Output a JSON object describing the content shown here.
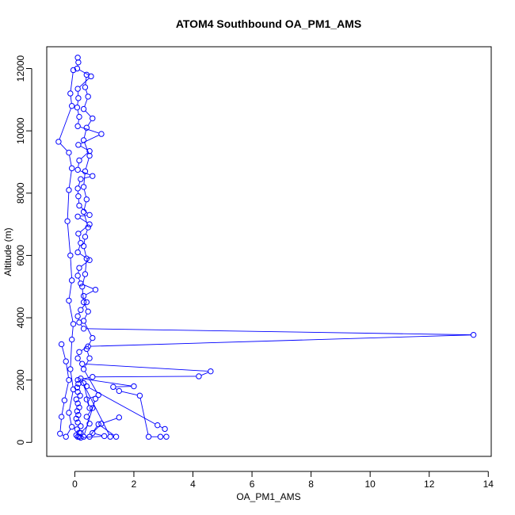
{
  "chart_data": {
    "type": "line",
    "title": "ATOM4 Southbound OA_PM1_AMS",
    "xlabel": "OA_PM1_AMS",
    "ylabel": "Altitude (m)",
    "xlim": [
      -0.95,
      14.1
    ],
    "ylim": [
      -450,
      12700
    ],
    "xticks": [
      0,
      2,
      4,
      6,
      8,
      10,
      12,
      14
    ],
    "yticks": [
      0,
      2000,
      4000,
      6000,
      8000,
      10000,
      12000
    ],
    "grid": false,
    "markers": "open-circle",
    "color": "#0000ff",
    "series": [
      {
        "values": [
          [
            0.1,
            180
          ],
          [
            0.05,
            230
          ],
          [
            0.15,
            310
          ],
          [
            0.08,
            420
          ],
          [
            0.2,
            520
          ],
          [
            0.1,
            640
          ],
          [
            0.05,
            760
          ],
          [
            0.12,
            880
          ],
          [
            0.08,
            1000
          ],
          [
            0.15,
            1120
          ],
          [
            0.1,
            1250
          ],
          [
            0.05,
            1380
          ],
          [
            0.18,
            1500
          ],
          [
            0.1,
            1620
          ],
          [
            0.08,
            1760
          ],
          [
            0.12,
            1880
          ],
          [
            0.1,
            2000
          ],
          [
            0.6,
            2100
          ],
          [
            4.2,
            2120
          ],
          [
            4.6,
            2280
          ],
          [
            0.25,
            2520
          ],
          [
            0.1,
            2700
          ],
          [
            0.15,
            2900
          ],
          [
            0.45,
            3080
          ],
          [
            13.5,
            3450
          ],
          [
            0.3,
            3650
          ],
          [
            0.15,
            3850
          ],
          [
            0.1,
            4050
          ],
          [
            0.2,
            4250
          ],
          [
            0.4,
            4500
          ],
          [
            0.3,
            4700
          ],
          [
            0.7,
            4900
          ],
          [
            0.2,
            5100
          ],
          [
            0.1,
            5350
          ],
          [
            0.15,
            5600
          ],
          [
            0.5,
            5850
          ],
          [
            0.1,
            6100
          ],
          [
            0.2,
            6400
          ],
          [
            0.12,
            6700
          ],
          [
            0.5,
            7000
          ],
          [
            0.1,
            7250
          ],
          [
            0.5,
            7300
          ],
          [
            0.15,
            7600
          ],
          [
            0.12,
            7900
          ],
          [
            0.1,
            8150
          ],
          [
            0.2,
            8450
          ],
          [
            0.6,
            8550
          ],
          [
            0.1,
            8750
          ],
          [
            0.15,
            9050
          ],
          [
            0.5,
            9350
          ],
          [
            0.12,
            9550
          ],
          [
            0.9,
            9900
          ],
          [
            0.1,
            10150
          ],
          [
            0.15,
            10450
          ],
          [
            0.08,
            10750
          ],
          [
            0.12,
            11050
          ],
          [
            0.1,
            11350
          ],
          [
            0.55,
            11750
          ],
          [
            0.08,
            12000
          ],
          [
            0.12,
            12200
          ],
          [
            0.1,
            12350
          ]
        ]
      },
      {
        "values": [
          [
            3.1,
            180
          ],
          [
            2.9,
            180
          ],
          [
            2.5,
            180
          ],
          [
            2.2,
            1500
          ],
          [
            1.5,
            1650
          ],
          [
            1.3,
            1780
          ],
          [
            2.0,
            1800
          ],
          [
            0.2,
            2050
          ],
          [
            1.2,
            180
          ],
          [
            1.4,
            180
          ],
          [
            0.8,
            580
          ],
          [
            0.5,
            180
          ],
          [
            0.3,
            180
          ],
          [
            0.7,
            1400
          ],
          [
            0.6,
            1100
          ],
          [
            0.4,
            820
          ],
          [
            0.5,
            600
          ],
          [
            0.2,
            300
          ],
          [
            0.15,
            180
          ]
        ]
      },
      {
        "values": [
          [
            -0.45,
            3150
          ],
          [
            -0.3,
            2600
          ],
          [
            -0.2,
            2000
          ],
          [
            -0.35,
            1350
          ],
          [
            -0.45,
            820
          ],
          [
            -0.5,
            280
          ],
          [
            -0.3,
            180
          ],
          [
            -0.1,
            500
          ],
          [
            -0.2,
            950
          ],
          [
            -0.05,
            1700
          ],
          [
            -0.15,
            2350
          ],
          [
            -0.1,
            3300
          ],
          [
            -0.05,
            3800
          ],
          [
            -0.2,
            4550
          ],
          [
            -0.1,
            5200
          ],
          [
            -0.15,
            6000
          ],
          [
            -0.25,
            7100
          ],
          [
            -0.2,
            8100
          ],
          [
            -0.1,
            8800
          ],
          [
            -0.2,
            9300
          ],
          [
            -0.55,
            9650
          ],
          [
            -0.1,
            10800
          ],
          [
            -0.15,
            11200
          ],
          [
            -0.05,
            11950
          ]
        ]
      },
      {
        "values": [
          [
            0.3,
            1900
          ],
          [
            0.5,
            1100
          ],
          [
            0.4,
            1380
          ],
          [
            0.8,
            1520
          ],
          [
            0.3,
            2350
          ],
          [
            0.5,
            2700
          ],
          [
            0.4,
            3000
          ],
          [
            0.6,
            3350
          ],
          [
            0.3,
            3900
          ],
          [
            0.45,
            4200
          ],
          [
            0.3,
            4500
          ],
          [
            0.25,
            5000
          ],
          [
            0.35,
            5400
          ],
          [
            0.4,
            5900
          ],
          [
            0.3,
            6300
          ],
          [
            0.35,
            6600
          ],
          [
            0.45,
            6900
          ],
          [
            0.3,
            7400
          ],
          [
            0.4,
            7800
          ],
          [
            0.3,
            8200
          ],
          [
            0.35,
            8700
          ],
          [
            0.5,
            9200
          ],
          [
            0.3,
            9700
          ],
          [
            0.4,
            10100
          ],
          [
            0.6,
            10400
          ],
          [
            0.3,
            10700
          ],
          [
            0.45,
            11100
          ],
          [
            0.35,
            11400
          ],
          [
            0.4,
            11800
          ]
        ]
      },
      {
        "values": [
          [
            0.4,
            1800
          ],
          [
            2.8,
            550
          ],
          [
            3.05,
            430
          ]
        ]
      },
      {
        "values": [
          [
            1.5,
            800
          ],
          [
            0.9,
            600
          ],
          [
            0.6,
            300
          ],
          [
            1.0,
            200
          ],
          [
            0.2,
            150
          ]
        ]
      }
    ]
  }
}
